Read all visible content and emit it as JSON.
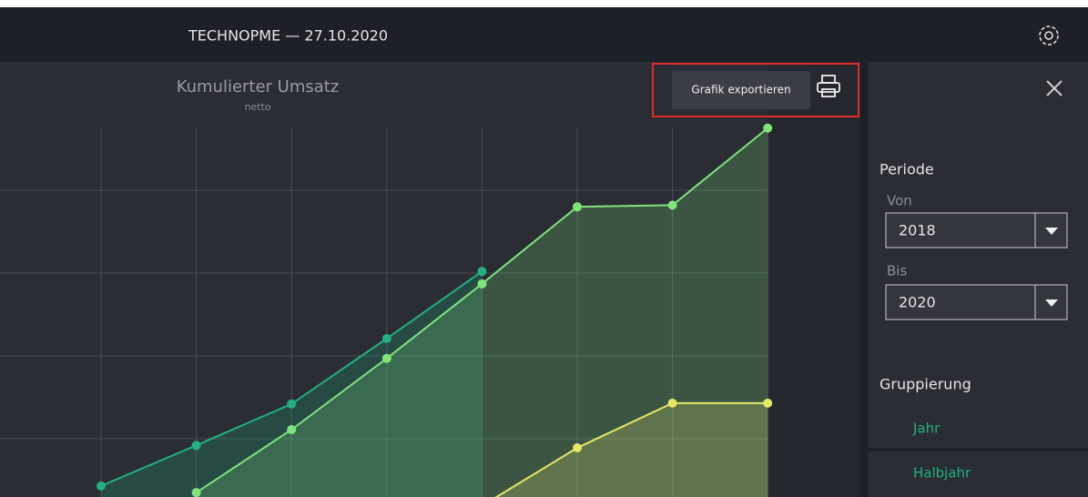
{
  "header": {
    "title": "TECHNOPME — 27.10.2020"
  },
  "export_tooltip": "Grafik exportieren",
  "chart_data": {
    "type": "line",
    "title": "Kumulierter Umsatz",
    "subtitle": "netto",
    "categories": [
      null,
      null,
      null,
      null,
      null,
      null,
      null,
      null
    ],
    "series": [
      {
        "color": "#22b083",
        "values": [
          0.43,
          0.92,
          1.42,
          2.21,
          3.02,
          null,
          null,
          null
        ]
      },
      {
        "color": "#7fe47c",
        "values": [
          null,
          0.35,
          1.11,
          1.97,
          2.87,
          3.8,
          3.82,
          4.75
        ]
      },
      {
        "color": "#e4e868",
        "values": [
          null,
          null,
          null,
          null,
          0.19,
          0.89,
          1.43,
          1.43
        ]
      }
    ],
    "ylim": [
      0,
      5
    ],
    "yticks": [
      1,
      2,
      3,
      4
    ],
    "grid": true
  },
  "sidebar": {
    "section_period": "Periode",
    "from_label": "Von",
    "from_value": "2018",
    "to_label": "Bis",
    "to_value": "2020",
    "section_grouping": "Gruppierung",
    "grouping_options": [
      "Jahr",
      "Halbjahr"
    ]
  }
}
